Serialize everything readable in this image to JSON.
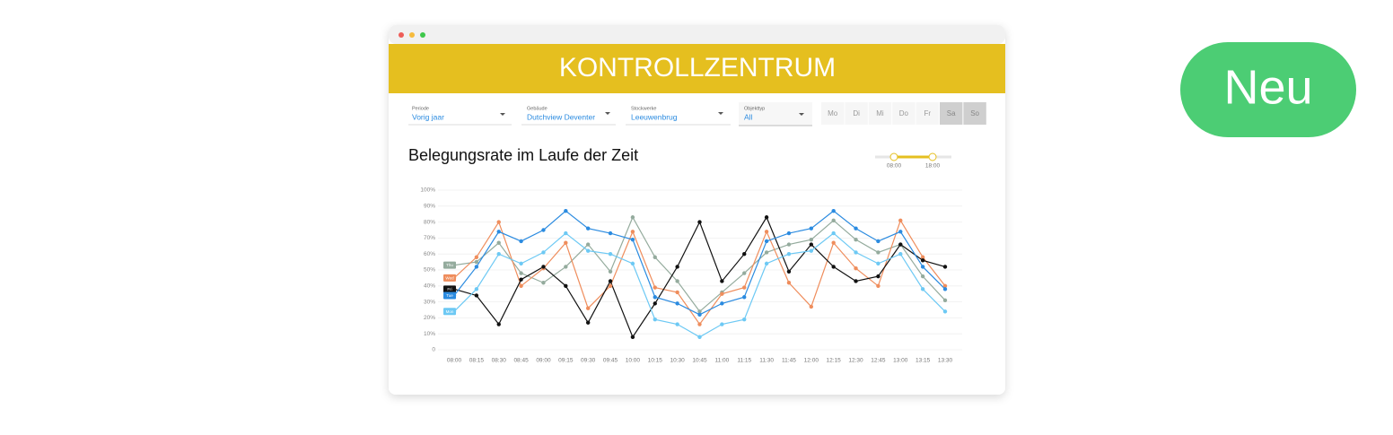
{
  "header": {
    "title": "KONTROLLZENTRUM"
  },
  "filters": [
    {
      "label": "Periode",
      "value": "Vorig jaar"
    },
    {
      "label": "Gebäude",
      "value": "Dutchview Deventer"
    },
    {
      "label": "Stockwerke",
      "value": "Leeuwenbrug"
    },
    {
      "label": "Objekttyp",
      "value": "All"
    }
  ],
  "days": [
    "Mo",
    "Di",
    "Mi",
    "Do",
    "Fr",
    "Sa",
    "So"
  ],
  "days_disabled": [
    false,
    false,
    false,
    false,
    false,
    true,
    true
  ],
  "slider": {
    "start": "08:00",
    "end": "18:00"
  },
  "badge": "Neu",
  "chart_data": {
    "type": "line",
    "title": "Belegungsrate im Laufe der Zeit",
    "categories": [
      "08:00",
      "08:15",
      "08:30",
      "08:45",
      "09:00",
      "09:15",
      "09:30",
      "09:45",
      "10:00",
      "10:15",
      "10:30",
      "10:45",
      "11:00",
      "11:15",
      "11:30",
      "11:45",
      "12:00",
      "12:15",
      "12:30",
      "12:45",
      "13:00",
      "13:15",
      "13:30"
    ],
    "series": [
      {
        "name": "Thu",
        "color": "#94ab9d",
        "values": [
          53,
          55,
          67,
          48,
          42,
          52,
          66,
          49,
          83,
          58,
          43,
          24,
          36,
          48,
          61,
          66,
          69,
          81,
          69,
          61,
          66,
          46,
          31
        ]
      },
      {
        "name": "Wed",
        "color": "#ef8d5c",
        "values": [
          45,
          58,
          80,
          40,
          51,
          67,
          26,
          40,
          74,
          39,
          36,
          16,
          35,
          39,
          74,
          42,
          27,
          67,
          51,
          40,
          81,
          58,
          40
        ]
      },
      {
        "name": "Fri",
        "color": "#111111",
        "values": [
          38,
          34,
          16,
          44,
          52,
          40,
          17,
          43,
          8,
          29,
          52,
          80,
          43,
          60,
          83,
          49,
          66,
          52,
          43,
          46,
          66,
          56,
          52
        ]
      },
      {
        "name": "Tue",
        "color": "#2b8be0",
        "values": [
          34,
          52,
          74,
          68,
          75,
          87,
          76,
          73,
          69,
          33,
          29,
          22,
          29,
          33,
          68,
          73,
          76,
          87,
          76,
          68,
          74,
          52,
          38
        ]
      },
      {
        "name": "Mon",
        "color": "#6dc9f4",
        "values": [
          24,
          38,
          60,
          54,
          61,
          73,
          62,
          60,
          54,
          19,
          16,
          8,
          16,
          19,
          54,
          60,
          62,
          73,
          61,
          54,
          60,
          38,
          24
        ]
      }
    ],
    "ylim": [
      0,
      100
    ],
    "yticks": [
      {
        "value": 0,
        "label": "0"
      },
      {
        "value": 10,
        "label": "10%"
      },
      {
        "value": 20,
        "label": "20%"
      },
      {
        "value": 30,
        "label": "30%"
      },
      {
        "value": 40,
        "label": "40%"
      },
      {
        "value": 50,
        "label": "50%"
      },
      {
        "value": 60,
        "label": "60%"
      },
      {
        "value": 70,
        "label": "70%"
      },
      {
        "value": 80,
        "label": "80%"
      },
      {
        "value": 90,
        "label": "90%"
      },
      {
        "value": 100,
        "label": "100%"
      }
    ],
    "grid": true
  }
}
